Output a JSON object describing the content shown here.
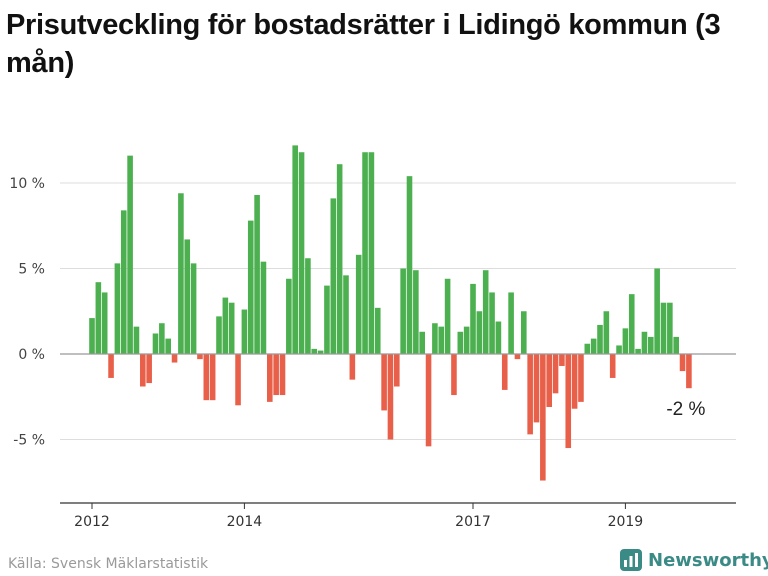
{
  "title": "Prisutveckling för bostadsrätter i Lidingö kommun (3 mån)",
  "source": "Källa: Svensk Mäklarstatistik",
  "brand": "Newsworthy",
  "colors": {
    "positive": "#4cb050",
    "negative": "#e8604a",
    "grid": "#dddddd",
    "brand": "#3a8a86"
  },
  "chart_data": {
    "type": "bar",
    "ylim": [
      -8.2,
      14
    ],
    "y_ticks": [
      {
        "value": 10,
        "label": "10 %"
      },
      {
        "value": 5,
        "label": "5 %"
      },
      {
        "value": 0,
        "label": "0 %"
      },
      {
        "value": -5,
        "label": "-5 %"
      }
    ],
    "x_ticks": [
      {
        "value": "2012-01",
        "label": "2012"
      },
      {
        "value": "2014-01",
        "label": "2014"
      },
      {
        "value": "2017-01",
        "label": "2017"
      },
      {
        "value": "2019-01",
        "label": "2019"
      }
    ],
    "last_value_label": "-2 %",
    "categories": [
      "2012-01",
      "2012-02",
      "2012-03",
      "2012-04",
      "2012-05",
      "2012-06",
      "2012-07",
      "2012-08",
      "2012-09",
      "2012-10",
      "2012-11",
      "2012-12",
      "2013-01",
      "2013-02",
      "2013-03",
      "2013-04",
      "2013-05",
      "2013-06",
      "2013-07",
      "2013-08",
      "2013-09",
      "2013-10",
      "2013-11",
      "2013-12",
      "2014-01",
      "2014-02",
      "2014-03",
      "2014-04",
      "2014-05",
      "2014-06",
      "2014-07",
      "2014-08",
      "2014-09",
      "2014-10",
      "2014-11",
      "2014-12",
      "2015-01",
      "2015-02",
      "2015-03",
      "2015-04",
      "2015-05",
      "2015-06",
      "2015-07",
      "2015-08",
      "2015-09",
      "2015-10",
      "2015-11",
      "2015-12",
      "2016-01",
      "2016-02",
      "2016-03",
      "2016-04",
      "2016-05",
      "2016-06",
      "2016-07",
      "2016-08",
      "2016-09",
      "2016-10",
      "2016-11",
      "2016-12",
      "2017-01",
      "2017-02",
      "2017-03",
      "2017-04",
      "2017-05",
      "2017-06",
      "2017-07",
      "2017-08",
      "2017-09",
      "2017-10",
      "2017-11",
      "2017-12",
      "2018-01",
      "2018-02",
      "2018-03",
      "2018-04",
      "2018-05",
      "2018-06",
      "2018-07",
      "2018-08",
      "2018-09",
      "2018-10",
      "2018-11",
      "2018-12",
      "2019-01",
      "2019-02",
      "2019-03",
      "2019-04",
      "2019-05",
      "2019-06",
      "2019-07",
      "2019-08",
      "2019-09",
      "2019-10",
      "2019-11"
    ],
    "values": [
      2.1,
      4.2,
      3.6,
      -1.4,
      5.3,
      8.4,
      11.6,
      1.6,
      -1.9,
      -1.7,
      1.2,
      1.8,
      0.9,
      -0.5,
      9.4,
      6.7,
      5.3,
      -0.3,
      -2.7,
      -2.7,
      2.2,
      3.3,
      3.0,
      -3.0,
      2.6,
      7.8,
      9.3,
      5.4,
      -2.8,
      -2.4,
      -2.4,
      4.4,
      12.2,
      11.8,
      5.6,
      0.3,
      0.2,
      4.0,
      9.1,
      11.1,
      4.6,
      -1.5,
      5.8,
      11.8,
      11.8,
      2.7,
      -3.3,
      -5.0,
      -1.9,
      5.0,
      10.4,
      4.9,
      1.3,
      -5.4,
      1.8,
      1.6,
      4.4,
      -2.4,
      1.3,
      1.6,
      4.1,
      2.5,
      4.9,
      3.6,
      1.9,
      -2.1,
      3.6,
      -0.3,
      2.5,
      -4.7,
      -4.0,
      -7.4,
      -3.1,
      -2.3,
      -0.7,
      -5.5,
      -3.2,
      -2.8,
      0.6,
      0.9,
      1.7,
      2.5,
      -1.4,
      0.5,
      1.5,
      3.5,
      0.3,
      1.3,
      1.0,
      5.0,
      3.0,
      3.0,
      1.0,
      -1.0,
      -2.0
    ]
  }
}
